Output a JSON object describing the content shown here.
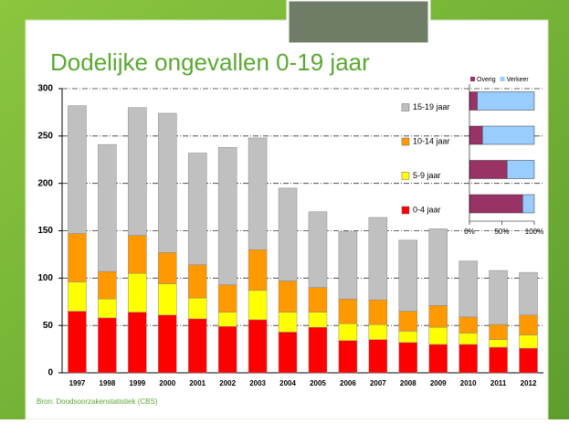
{
  "chart_data": [
    {
      "type": "stacked_bar",
      "title": "Dodelijke ongevallen 0-19 jaar",
      "source": "Bron: Doodsoorzakenstatistiek (CBS)",
      "categories": [
        "1997",
        "1998",
        "1999",
        "2000",
        "2001",
        "2002",
        "2003",
        "2004",
        "2005",
        "2006",
        "2007",
        "2008",
        "2009",
        "2010",
        "2011",
        "2012"
      ],
      "series": [
        {
          "name": "0-4 jaar",
          "color": "#ff0000",
          "values": [
            65,
            58,
            64,
            61,
            57,
            49,
            56,
            43,
            48,
            34,
            35,
            32,
            30,
            30,
            27,
            26
          ]
        },
        {
          "name": "5-9 jaar",
          "color": "#ffff00",
          "values": [
            31,
            20,
            41,
            33,
            22,
            15,
            31,
            21,
            16,
            18,
            16,
            12,
            18,
            12,
            8,
            14
          ]
        },
        {
          "name": "10-14 jaar",
          "color": "#ff9900",
          "values": [
            51,
            29,
            40,
            33,
            35,
            29,
            43,
            33,
            26,
            26,
            26,
            21,
            23,
            17,
            16,
            21
          ]
        },
        {
          "name": "15-19 jaar",
          "color": "#c0c0c0",
          "values": [
            135,
            134,
            135,
            147,
            118,
            145,
            118,
            98,
            80,
            71,
            87,
            75,
            81,
            59,
            57,
            45
          ]
        }
      ],
      "ylim": [
        0,
        300
      ],
      "yticks": [
        0,
        50,
        100,
        150,
        200,
        250,
        300
      ],
      "grid": true
    },
    {
      "type": "stacked_hbar",
      "series": [
        {
          "name": "Overig",
          "color": "#993366",
          "values": [
            82,
            58,
            20,
            12
          ]
        },
        {
          "name": "Verkeer",
          "color": "#99ccff",
          "values": [
            18,
            42,
            80,
            88
          ]
        }
      ],
      "xlim": [
        0,
        100
      ],
      "xticks": [
        {
          "value": 0,
          "label": "0%"
        },
        {
          "value": 50,
          "label": "50%"
        },
        {
          "value": 100,
          "label": "100%"
        }
      ]
    }
  ]
}
